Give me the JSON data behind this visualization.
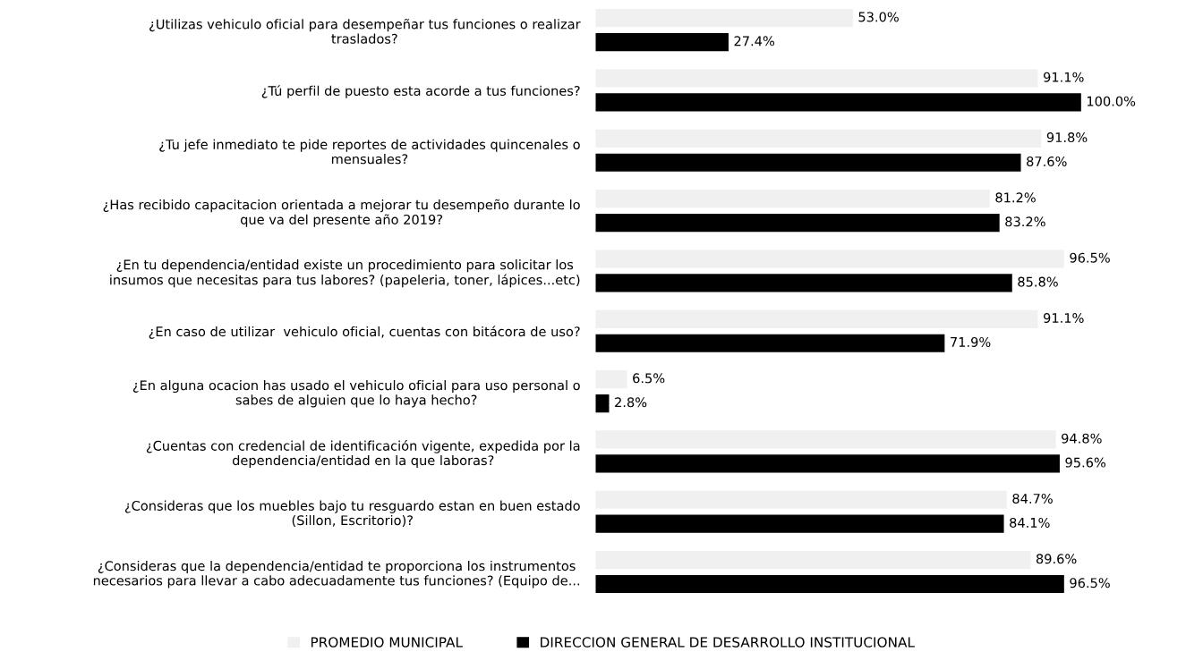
{
  "chart_data": {
    "type": "bar",
    "orientation": "horizontal",
    "legend": "bottom",
    "grid": false,
    "categories": [
      "¿Utilizas vehiculo oficial para desempeñar tus funciones o realizar\ntraslados?",
      "¿Tú perfil de puesto esta acorde a tus funciones?",
      "¿Tu jefe inmediato te pide reportes de actividades quincenales o\nmensuales?",
      "¿Has recibido capacitacion orientada a mejorar tu desempeño durante lo\nque va del presente año 2019?",
      "¿En tu dependencia/entidad existe un procedimiento para solicitar los\ninsumos que necesitas para tus labores? (papeleria, toner, lápices...etc)",
      "¿En caso de utilizar  vehiculo oficial, cuentas con bitácora de uso?",
      "¿En alguna ocacion has usado el vehiculo oficial para uso personal o\nsabes de alguien que lo haya hecho?",
      "¿Cuentas con credencial de identificación vigente, expedida por la\ndependencia/entidad en la que laboras?",
      "¿Consideras que los muebles bajo tu resguardo estan en buen estado\n(Sillon, Escritorio)?",
      "¿Consideras que la dependencia/entidad te proporciona los instrumentos\nnecesarios para llevar a cabo adecuadamente tus funciones? (Equipo de..."
    ],
    "series": [
      {
        "name": "PROMEDIO MUNICIPAL",
        "color": "#f0f0f0",
        "values": [
          53.0,
          91.1,
          91.8,
          81.2,
          96.5,
          91.1,
          6.5,
          94.8,
          84.7,
          89.6
        ],
        "value_labels": [
          "53.0%",
          "91.1%",
          "91.8%",
          "81.2%",
          "96.5%",
          "91.1%",
          "6.5%",
          "94.8%",
          "84.7%",
          "89.6%"
        ]
      },
      {
        "name": "DIRECCION GENERAL DE DESARROLLO INSTITUCIONAL",
        "color": "#000000",
        "values": [
          27.4,
          100.0,
          87.6,
          83.2,
          85.8,
          71.9,
          2.8,
          95.6,
          84.1,
          96.5
        ],
        "value_labels": [
          "27.4%",
          "100.0%",
          "87.6%",
          "83.2%",
          "85.8%",
          "71.9%",
          "2.8%",
          "95.6%",
          "84.1%",
          "96.5%"
        ]
      }
    ]
  }
}
